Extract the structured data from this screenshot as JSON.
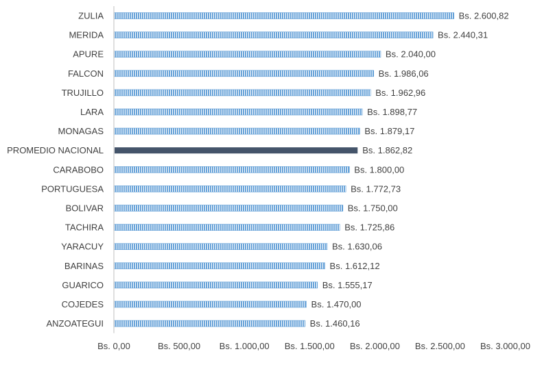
{
  "chart_data": {
    "type": "bar",
    "orientation": "horizontal",
    "title": "",
    "xlabel": "",
    "ylabel": "",
    "xlim": [
      0,
      3000
    ],
    "grid": false,
    "legend": "none",
    "categories": [
      "ZULIA",
      "MERIDA",
      "APURE",
      "FALCON",
      "TRUJILLO",
      "LARA",
      "MONAGAS",
      "PROMEDIO NACIONAL",
      "CARABOBO",
      "PORTUGUESA",
      "BOLIVAR",
      "TACHIRA",
      "YARACUY",
      "BARINAS",
      "GUARICO",
      "COJEDES",
      "ANZOATEGUI"
    ],
    "values": [
      2600.82,
      2440.31,
      2040.0,
      1986.06,
      1962.96,
      1898.77,
      1879.17,
      1862.82,
      1800.0,
      1772.73,
      1750.0,
      1725.86,
      1630.06,
      1612.12,
      1555.17,
      1470.0,
      1460.16
    ],
    "value_labels": [
      "Bs.  2.600,82",
      "Bs.  2.440,31",
      "Bs.  2.040,00",
      "Bs.  1.986,06",
      "Bs.  1.962,96",
      "Bs.  1.898,77",
      "Bs.  1.879,17",
      "Bs.  1.862,82",
      "Bs.  1.800,00",
      "Bs.  1.772,73",
      "Bs.  1.750,00",
      "Bs.  1.725,86",
      "Bs.  1.630,06",
      "Bs.  1.612,12",
      "Bs.  1.555,17",
      "Bs.  1.470,00",
      "Bs.  1.460,16"
    ],
    "highlight_category": "PROMEDIO NACIONAL",
    "x_ticks": [
      0,
      500,
      1000,
      1500,
      2000,
      2500,
      3000
    ],
    "x_tick_labels": [
      "Bs.  0,00",
      "Bs.  500,00",
      "Bs.  1.000,00",
      "Bs.  1.500,00",
      "Bs.  2.000,00",
      "Bs.  2.500,00",
      "Bs.  3.000,00"
    ],
    "colors": {
      "bar": "#5b9bd5",
      "bar_stripe": "#ffffff",
      "highlight": "#44546a",
      "axis": "#bfbfbf",
      "text": "#404040"
    }
  }
}
